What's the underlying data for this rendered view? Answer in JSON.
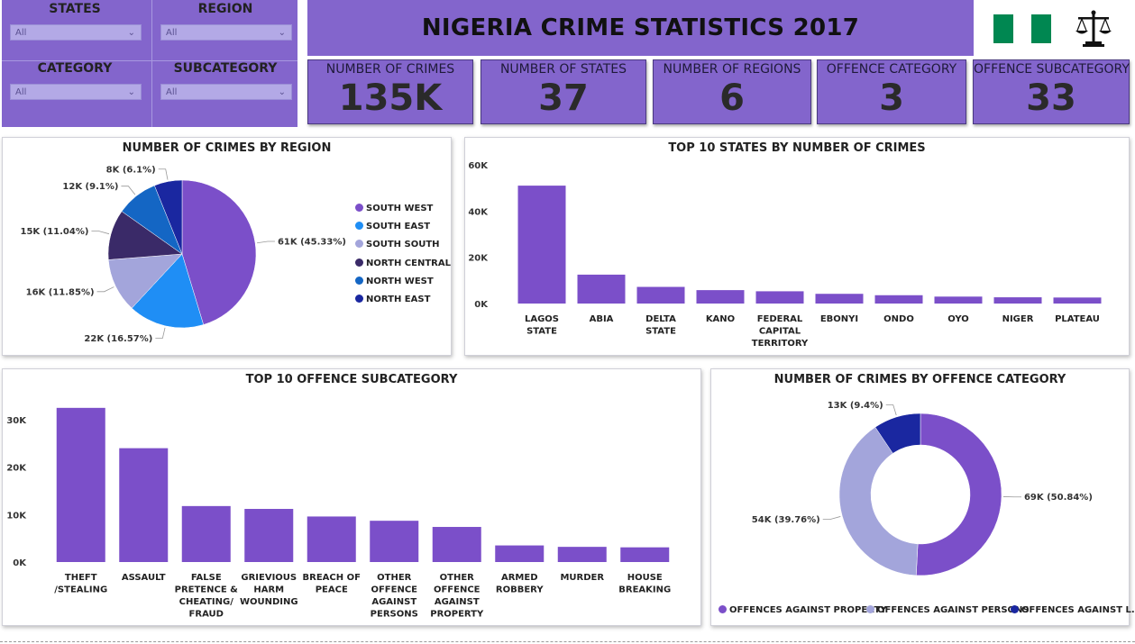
{
  "filters": [
    {
      "label": "STATES",
      "value": "All"
    },
    {
      "label": "REGION",
      "value": "All"
    },
    {
      "label": "CATEGORY",
      "value": "All"
    },
    {
      "label": "SUBCATEGORY",
      "value": "All"
    }
  ],
  "title": "NIGERIA CRIME STATISTICS 2017",
  "icons": {
    "flag": "nigeria-flag-icon",
    "scales": "scales-of-justice-icon"
  },
  "colors": {
    "panel": "#8365cc",
    "bar": "#7b4fc9",
    "flag_green": "#008751"
  },
  "kpis": [
    {
      "title": "NUMBER OF CRIMES",
      "value": "135K"
    },
    {
      "title": "NUMBER OF STATES",
      "value": "37"
    },
    {
      "title": "NUMBER OF REGIONS",
      "value": "6"
    },
    {
      "title": "OFFENCE CATEGORY",
      "value": "3"
    },
    {
      "title": "OFFENCE SUBCATEGORY",
      "value": "33"
    }
  ],
  "chart_data": [
    {
      "type": "pie",
      "title": "NUMBER OF CRIMES BY REGION",
      "legend_position": "right",
      "slices": [
        {
          "name": "SOUTH WEST",
          "value": 61,
          "percent": 45.33,
          "label": "61K (45.33%)",
          "color": "#7b4fc9"
        },
        {
          "name": "SOUTH EAST",
          "value": 22,
          "percent": 16.57,
          "label": "22K (16.57%)",
          "color": "#1f8ef5"
        },
        {
          "name": "SOUTH SOUTH",
          "value": 16,
          "percent": 11.85,
          "label": "16K (11.85%)",
          "color": "#a3a5db"
        },
        {
          "name": "NORTH CENTRAL",
          "value": 15,
          "percent": 11.04,
          "label": "15K (11.04%)",
          "color": "#3a2a68"
        },
        {
          "name": "NORTH WEST",
          "value": 12,
          "percent": 9.1,
          "label": "12K (9.1%)",
          "color": "#1466c4"
        },
        {
          "name": "NORTH EAST",
          "value": 8,
          "percent": 6.1,
          "label": "8K (6.1%)",
          "color": "#1a27a0"
        }
      ]
    },
    {
      "type": "bar",
      "title": "TOP 10 STATES BY NUMBER OF CRIMES",
      "categories": [
        "LAGOS STATE",
        "ABIA",
        "DELTA STATE",
        "KANO",
        "FEDERAL CAPITAL TERRITORY",
        "EBONYI",
        "ONDO",
        "OYO",
        "NIGER",
        "PLATEAU"
      ],
      "values": [
        51000,
        12500,
        7200,
        5800,
        5300,
        4200,
        3600,
        3000,
        2700,
        2600
      ],
      "yticks": [
        "0K",
        "20K",
        "40K",
        "60K"
      ],
      "ylim": [
        0,
        60000
      ],
      "grid": false
    },
    {
      "type": "bar",
      "title": "TOP 10 OFFENCE SUBCATEGORY",
      "categories": [
        "THEFT /STEALING",
        "ASSAULT",
        "FALSE PRETENCE & CHEATING/ FRAUD",
        "GRIEVIOUS HARM WOUNDING",
        "BREACH OF PEACE",
        "OTHER OFFENCE AGAINST PERSONS",
        "OTHER OFFENCE AGAINST PROPERTY",
        "ARMED ROBBERY",
        "MURDER",
        "HOUSE BREAKING"
      ],
      "values": [
        32500,
        24000,
        11800,
        11200,
        9600,
        8700,
        7400,
        3500,
        3200,
        3100
      ],
      "yticks": [
        "0K",
        "10K",
        "20K",
        "30K"
      ],
      "ylim": [
        0,
        30000
      ],
      "grid": false
    },
    {
      "type": "pie",
      "title": "NUMBER OF CRIMES BY OFFENCE CATEGORY",
      "donut": true,
      "legend_position": "bottom",
      "slices": [
        {
          "name": "OFFENCES AGAINST PROPERTY",
          "value": 69,
          "percent": 50.84,
          "label": "69K (50.84%)",
          "color": "#7b4fc9"
        },
        {
          "name": "OFFENCES AGAINST PERSONS",
          "value": 54,
          "percent": 39.76,
          "label": "54K (39.76%)",
          "color": "#a3a5db"
        },
        {
          "name": "OFFENCES AGAINST L...",
          "value": 13,
          "percent": 9.4,
          "label": "13K (9.4%)",
          "color": "#1a27a0"
        }
      ]
    }
  ]
}
